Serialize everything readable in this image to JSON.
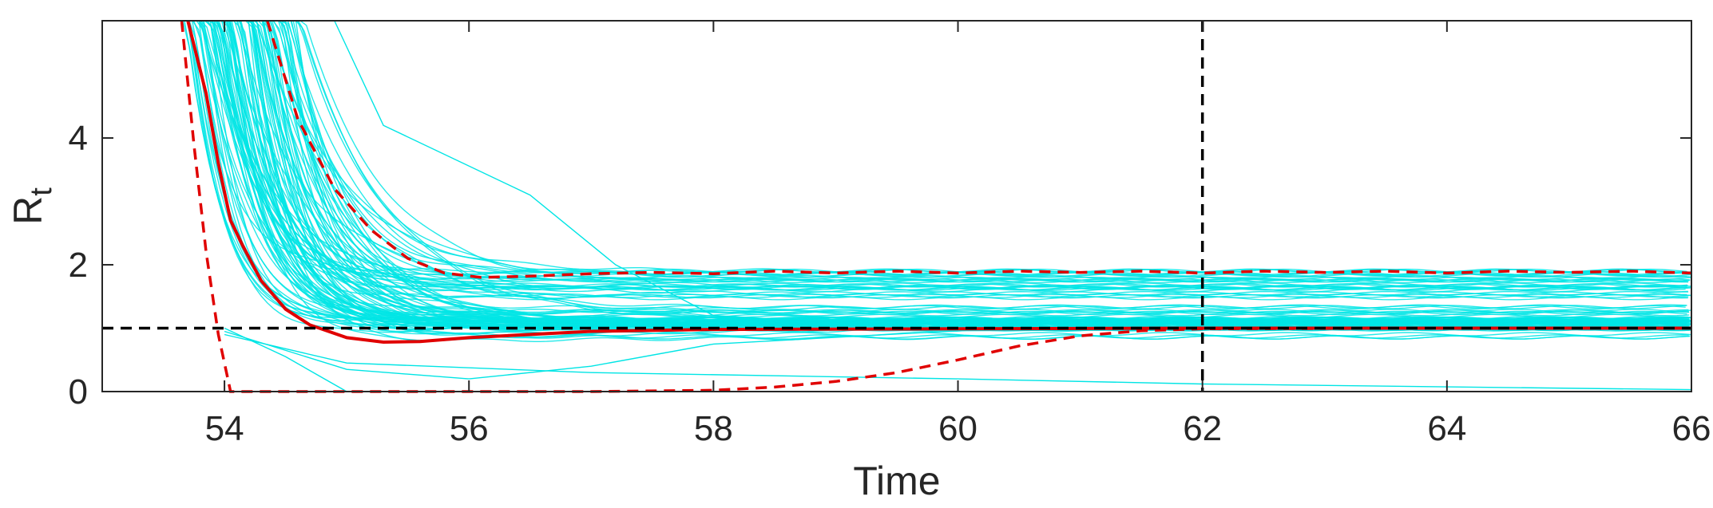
{
  "chart_data": {
    "type": "line",
    "title": "",
    "xlabel": "Time",
    "ylabel_main": "R",
    "ylabel_sub": "t",
    "xlim": [
      53,
      66
    ],
    "ylim": [
      0,
      5.85
    ],
    "xticks": [
      54,
      56,
      58,
      60,
      62,
      64,
      66
    ],
    "yticks": [
      0,
      2,
      4
    ],
    "grid": false,
    "colors": {
      "ensemble": "#00e5e5",
      "mean": "#e00000",
      "bounds": "#e00000",
      "reference": "#000000",
      "axes": "#262626"
    },
    "reference_lines": {
      "horizontal_y": 1,
      "vertical_x": 62
    },
    "series": [
      {
        "role": "mean",
        "style": "solid",
        "x": [
          53.7,
          53.85,
          53.95,
          54.05,
          54.15,
          54.3,
          54.5,
          54.7,
          55.0,
          55.3,
          55.6,
          56.0,
          57.0,
          58.0,
          60.0,
          62.0,
          64.0,
          66.0
        ],
        "y": [
          5.85,
          4.7,
          3.6,
          2.7,
          2.3,
          1.75,
          1.3,
          1.05,
          0.85,
          0.78,
          0.79,
          0.85,
          0.95,
          0.98,
          0.99,
          1.0,
          1.0,
          1.0
        ]
      },
      {
        "role": "upper-bound",
        "style": "dashed",
        "x": [
          54.35,
          54.6,
          54.9,
          55.2,
          55.5,
          55.8,
          56.1,
          56.5,
          57.0,
          57.5,
          58.0,
          58.5,
          59.0,
          59.5,
          60.0,
          60.5,
          61.0,
          61.5,
          62.0,
          62.5,
          63.0,
          63.5,
          64.0,
          64.5,
          65.0,
          65.5,
          66.0
        ],
        "y": [
          5.85,
          4.3,
          3.2,
          2.55,
          2.1,
          1.87,
          1.8,
          1.82,
          1.86,
          1.88,
          1.86,
          1.9,
          1.87,
          1.9,
          1.87,
          1.9,
          1.88,
          1.9,
          1.87,
          1.9,
          1.88,
          1.9,
          1.87,
          1.9,
          1.88,
          1.9,
          1.87
        ]
      },
      {
        "role": "lower-bound",
        "style": "dashed",
        "x": [
          53.65,
          53.75,
          53.85,
          53.95,
          54.05,
          55.0,
          57.0,
          58.0,
          58.5,
          59.0,
          59.5,
          60.0,
          60.5,
          61.0,
          61.5,
          62.0,
          64.0,
          66.0
        ],
        "y": [
          5.85,
          3.9,
          2.2,
          0.9,
          0.0,
          0.0,
          0.0,
          0.02,
          0.07,
          0.16,
          0.3,
          0.5,
          0.72,
          0.88,
          0.96,
          0.99,
          1.0,
          1.0
        ]
      }
    ]
  }
}
